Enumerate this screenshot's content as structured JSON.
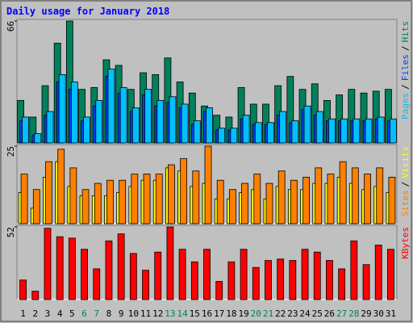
{
  "title": "Daily usage for January 2018",
  "legend_separator": "/",
  "categories": [
    "1",
    "2",
    "3",
    "4",
    "5",
    "6",
    "7",
    "8",
    "9",
    "10",
    "11",
    "12",
    "13",
    "14",
    "15",
    "16",
    "17",
    "18",
    "19",
    "20",
    "21",
    "22",
    "23",
    "24",
    "25",
    "26",
    "27",
    "28",
    "29",
    "30",
    "31"
  ],
  "category_colors": [
    "#000000",
    "#000000",
    "#000000",
    "#000000",
    "#000000",
    "#00805c",
    "#00805c",
    "#000000",
    "#000000",
    "#000000",
    "#000000",
    "#000000",
    "#00805c",
    "#00805c",
    "#000000",
    "#000000",
    "#000000",
    "#000000",
    "#000000",
    "#00805c",
    "#00805c",
    "#000000",
    "#000000",
    "#000000",
    "#000000",
    "#000000",
    "#00805c",
    "#00805c",
    "#000000",
    "#000000",
    "#000000"
  ],
  "chart_data": [
    {
      "type": "bar",
      "ylim": [
        0,
        66
      ],
      "yticks": [
        66
      ],
      "series": [
        {
          "name": "Hits",
          "color": "#00805c",
          "values": [
            23,
            14,
            31,
            54,
            66,
            29,
            30,
            45,
            42,
            29,
            38,
            37,
            46,
            33,
            27,
            20,
            15,
            14,
            30,
            21,
            21,
            31,
            36,
            29,
            32,
            23,
            26,
            29,
            27,
            28,
            29
          ]
        },
        {
          "name": "Files",
          "color": "#0040ff",
          "values": [
            12,
            4,
            15,
            33,
            29,
            12,
            20,
            36,
            27,
            17,
            26,
            20,
            22,
            19,
            10,
            17,
            7,
            7,
            13,
            10,
            10,
            15,
            11,
            18,
            15,
            12,
            12,
            12,
            12,
            13,
            12
          ]
        },
        {
          "name": "Pages",
          "color": "#00c0ff",
          "values": [
            14,
            5,
            17,
            37,
            33,
            14,
            23,
            40,
            30,
            19,
            29,
            23,
            25,
            21,
            12,
            19,
            8,
            8,
            15,
            11,
            11,
            17,
            12,
            20,
            17,
            13,
            13,
            13,
            13,
            14,
            13
          ]
        }
      ]
    },
    {
      "type": "bar",
      "ylim": [
        0,
        25
      ],
      "yticks": [
        25
      ],
      "series": [
        {
          "name": "Visits",
          "color": "#ffff00",
          "values": [
            10,
            5,
            15,
            20,
            12,
            9,
            9,
            9,
            10,
            12,
            14,
            14,
            18,
            17,
            12,
            13,
            8,
            8,
            10,
            11,
            8,
            12,
            11,
            11,
            13,
            13,
            15,
            13,
            11,
            12,
            10
          ]
        },
        {
          "name": "Sites",
          "color": "#ff8000",
          "values": [
            16,
            11,
            20,
            24,
            18,
            11,
            13,
            14,
            14,
            16,
            16,
            16,
            19,
            21,
            17,
            25,
            14,
            11,
            13,
            16,
            13,
            17,
            14,
            15,
            18,
            16,
            20,
            18,
            16,
            18,
            15
          ]
        }
      ]
    },
    {
      "type": "bar",
      "ylim": [
        0,
        52
      ],
      "yticks": [
        52
      ],
      "series": [
        {
          "name": "KBytes",
          "color": "#ff0000",
          "values": [
            14,
            6,
            51,
            45,
            44,
            36,
            22,
            42,
            47,
            33,
            21,
            34,
            52,
            36,
            27,
            36,
            13,
            27,
            36,
            23,
            28,
            29,
            28,
            36,
            34,
            28,
            22,
            42,
            25,
            39,
            36
          ]
        }
      ]
    }
  ]
}
